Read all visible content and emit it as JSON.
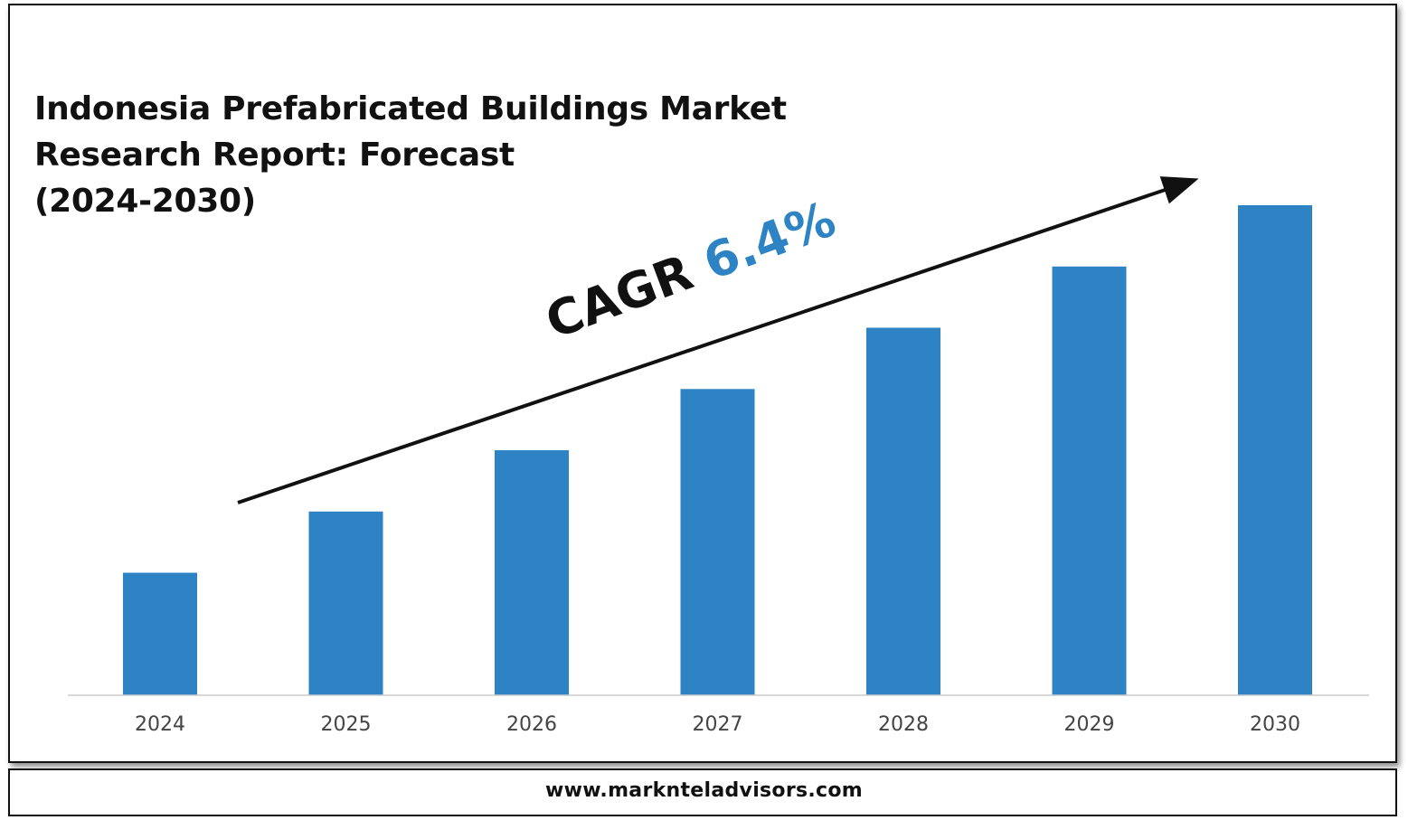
{
  "title_lines": [
    "Indonesia Prefabricated Buildings Market",
    "Research Report: Forecast",
    "(2024-2030)"
  ],
  "cagr": {
    "label": "CAGR",
    "value": "6.4%"
  },
  "footer": {
    "url": "www.marknteladvisors.com"
  },
  "colors": {
    "bar": "#2E83C4",
    "cagr_value": "#2E83C4",
    "axis": "#cccccc",
    "arrow": "#111111"
  },
  "chart_data": {
    "type": "bar",
    "title": "Indonesia Prefabricated Buildings Market Research Report: Forecast (2024-2030)",
    "categories": [
      "2024",
      "2025",
      "2026",
      "2027",
      "2028",
      "2029",
      "2030"
    ],
    "values": [
      1.0,
      1.5,
      2.0,
      2.5,
      3.0,
      3.5,
      4.0
    ],
    "ylim": [
      0,
      4.0
    ],
    "grid": false,
    "legend": "none",
    "annotations": [
      "CAGR 6.4%"
    ]
  }
}
